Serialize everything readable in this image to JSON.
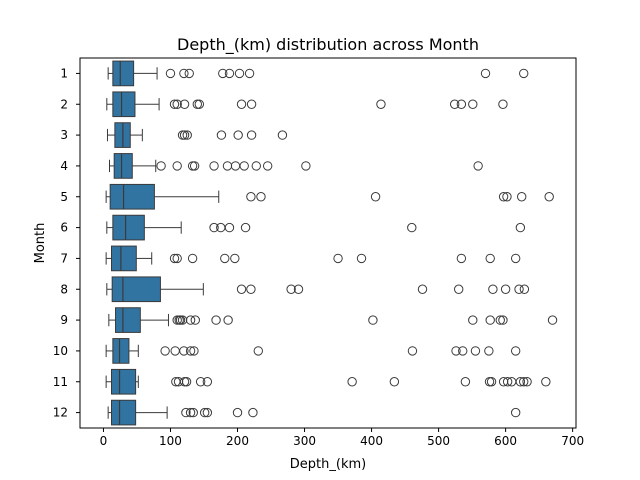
{
  "chart_data": {
    "type": "boxplot",
    "orientation": "horizontal",
    "title": "Depth_(km) distribution across Month",
    "xlabel": "Depth_(km)",
    "ylabel": "Month",
    "xlim": [
      -35,
      705
    ],
    "xticks": [
      0,
      100,
      200,
      300,
      400,
      500,
      600,
      700
    ],
    "grid": false,
    "colors": {
      "box_fill": "#3274a1",
      "line": "#3a3a3a",
      "frame": "#000000"
    },
    "categories": [
      "1",
      "2",
      "3",
      "4",
      "5",
      "6",
      "7",
      "8",
      "9",
      "10",
      "11",
      "12"
    ],
    "series": [
      {
        "category": "1",
        "whisker_low": 7,
        "q1": 14,
        "median": 25,
        "q3": 45,
        "whisker_high": 80,
        "outliers": [
          100,
          120,
          128,
          178,
          188,
          203,
          218,
          570,
          627
        ]
      },
      {
        "category": "2",
        "whisker_low": 5,
        "q1": 14,
        "median": 27,
        "q3": 47,
        "whisker_high": 83,
        "outliers": [
          106,
          110,
          121,
          140,
          143,
          206,
          221,
          414,
          524,
          534,
          551,
          596
        ]
      },
      {
        "category": "3",
        "whisker_low": 6,
        "q1": 17,
        "median": 29,
        "q3": 40,
        "whisker_high": 58,
        "outliers": [
          118,
          121,
          125,
          176,
          201,
          221,
          267
        ]
      },
      {
        "category": "4",
        "whisker_low": 9,
        "q1": 16,
        "median": 27,
        "q3": 43,
        "whisker_high": 78,
        "outliers": [
          86,
          110,
          133,
          136,
          165,
          185,
          197,
          210,
          228,
          245,
          302,
          559
        ]
      },
      {
        "category": "5",
        "whisker_low": 4,
        "q1": 10,
        "median": 30,
        "q3": 76,
        "whisker_high": 172,
        "outliers": [
          220,
          235,
          406,
          597,
          602,
          624,
          665
        ]
      },
      {
        "category": "6",
        "whisker_low": 5,
        "q1": 14,
        "median": 33,
        "q3": 61,
        "whisker_high": 116,
        "outliers": [
          165,
          175,
          188,
          212,
          460,
          622
        ]
      },
      {
        "category": "7",
        "whisker_low": 4,
        "q1": 12,
        "median": 26,
        "q3": 49,
        "whisker_high": 72,
        "outliers": [
          106,
          110,
          133,
          181,
          196,
          350,
          385,
          534,
          577,
          615
        ]
      },
      {
        "category": "8",
        "whisker_low": 5,
        "q1": 13,
        "median": 29,
        "q3": 85,
        "whisker_high": 149,
        "outliers": [
          206,
          220,
          280,
          291,
          476,
          530,
          581,
          600,
          620,
          628
        ]
      },
      {
        "category": "9",
        "whisker_low": 8,
        "q1": 18,
        "median": 29,
        "q3": 55,
        "whisker_high": 97,
        "outliers": [
          110,
          113,
          115,
          118,
          130,
          137,
          168,
          186,
          402,
          551,
          577,
          592,
          596,
          670
        ]
      },
      {
        "category": "10",
        "whisker_low": 4,
        "q1": 14,
        "median": 24,
        "q3": 38,
        "whisker_high": 52,
        "outliers": [
          92,
          107,
          120,
          130,
          135,
          231,
          461,
          526,
          536,
          555,
          575,
          615
        ]
      },
      {
        "category": "11",
        "whisker_low": 4,
        "q1": 12,
        "median": 24,
        "q3": 48,
        "whisker_high": 52,
        "outliers": [
          108,
          112,
          121,
          124,
          145,
          155,
          371,
          434,
          540,
          576,
          579,
          597,
          603,
          609,
          622,
          627,
          632,
          660
        ]
      },
      {
        "category": "12",
        "whisker_low": 7,
        "q1": 12,
        "median": 24,
        "q3": 48,
        "whisker_high": 95,
        "outliers": [
          123,
          130,
          134,
          151,
          155,
          200,
          223,
          615
        ]
      }
    ]
  }
}
